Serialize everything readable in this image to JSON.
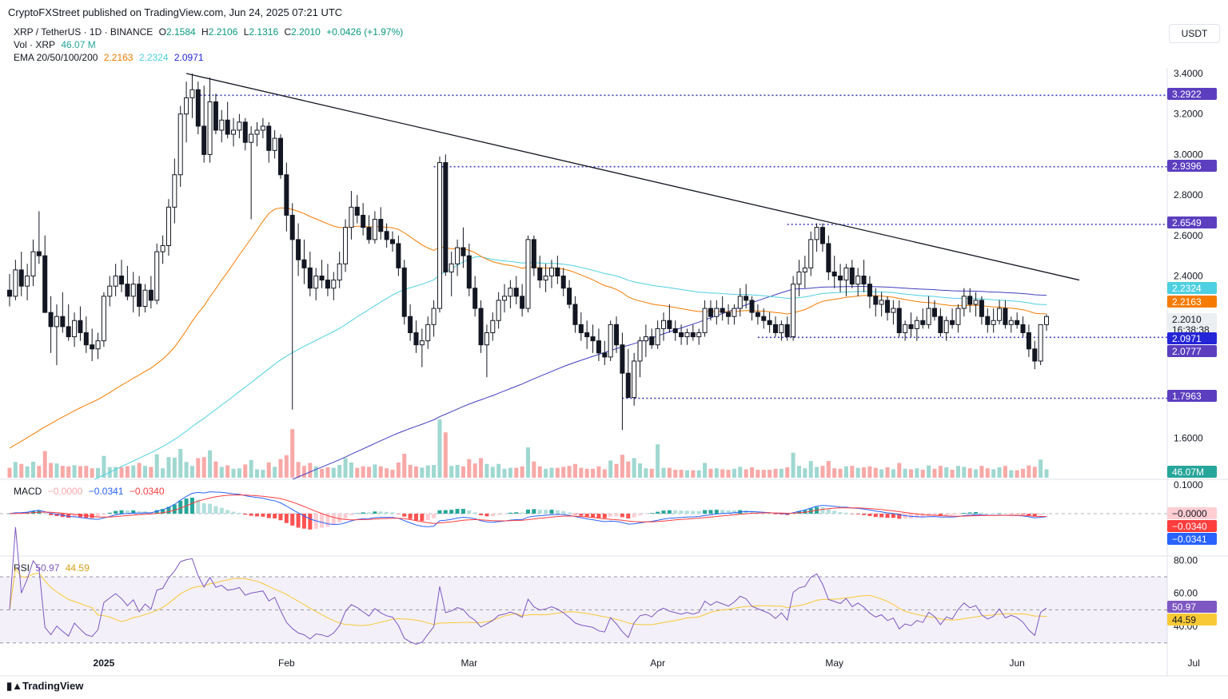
{
  "publisher_line": "CryptoFXStreet published on TradingView.com, Jun 24, 2025 07:21 UTC",
  "currency_button": "USDT",
  "brand": "TradingView",
  "header": {
    "symbol": "XRP / TetherUS · 1D · BINANCE",
    "ohlc": [
      {
        "label": "O",
        "value": "2.1584"
      },
      {
        "label": "H",
        "value": "2.2106"
      },
      {
        "label": "L",
        "value": "2.1316"
      },
      {
        "label": "C",
        "value": "2.2010"
      }
    ],
    "change": "+0.0426 (+1.97%)",
    "vol_label": "Vol · XRP",
    "vol_value": "46.07 M",
    "ema_label": "EMA 20/50/100/200",
    "ema_values": [
      "2.2163",
      "2.2324",
      "2.0971"
    ]
  },
  "macd_header": {
    "label": "MACD",
    "values": [
      "−0.0000",
      "−0.0341",
      "−0.0340"
    ]
  },
  "rsi_header": {
    "label": "RSI",
    "values": [
      "50.97",
      "44.59"
    ]
  },
  "colors": {
    "up": "#26a69a",
    "down": "#ef5350",
    "ema20": "#f57c00",
    "ema50": "#ff9800",
    "ema100": "#4dd0e1",
    "ema200": "#3f3fbf",
    "level": "#3f3fbf",
    "rsi": "#7e57c2",
    "rsi_ma": "#f9c935",
    "macd": "#2962ff",
    "signal": "#ff3d3d"
  },
  "chart_data": {
    "type": "candlestick",
    "title": "XRP / TetherUS · 1D · BINANCE",
    "ylim": [
      1.45,
      3.45
    ],
    "y_ticks": [
      "3.4000",
      "3.2000",
      "3.0000",
      "2.8000",
      "2.6000",
      "2.4000",
      "1.6000"
    ],
    "x_ticks": [
      "2025",
      "Feb",
      "Mar",
      "Apr",
      "May",
      "Jun",
      "Jul"
    ],
    "horizontal_levels": [
      "3.2922",
      "2.9396",
      "2.6549",
      "2.0971",
      "1.7963"
    ],
    "price_tags": [
      {
        "value": "3.2922",
        "bg": "#5b3fbf",
        "fg": "#ffffff"
      },
      {
        "value": "2.9396",
        "bg": "#5b3fbf",
        "fg": "#ffffff"
      },
      {
        "value": "2.6549",
        "bg": "#5b3fbf",
        "fg": "#ffffff"
      },
      {
        "value": "2.2324",
        "bg": "#4dd0e1",
        "fg": "#ffffff"
      },
      {
        "value": "2.2163",
        "bg": "#f57c00",
        "fg": "#ffffff"
      },
      {
        "value": "2.2010",
        "bg": "#eceff2",
        "fg": "#131722",
        "sub": "16:38:38"
      },
      {
        "value": "2.0971",
        "bg": "#2525d8",
        "fg": "#ffffff"
      },
      {
        "value": "2.0777",
        "bg": "#5b3fbf",
        "fg": "#ffffff"
      },
      {
        "value": "1.7963",
        "bg": "#5b3fbf",
        "fg": "#ffffff"
      }
    ],
    "trendline": [
      3.4,
      2.38
    ],
    "ohlc_series": [
      [
        2.33,
        2.41,
        2.25,
        2.3
      ],
      [
        2.3,
        2.48,
        2.28,
        2.43
      ],
      [
        2.43,
        2.52,
        2.3,
        2.35
      ],
      [
        2.35,
        2.46,
        2.28,
        2.4
      ],
      [
        2.4,
        2.58,
        2.35,
        2.52
      ],
      [
        2.52,
        2.72,
        2.46,
        2.5
      ],
      [
        2.5,
        2.6,
        2.25,
        2.22
      ],
      [
        2.22,
        2.3,
        2.02,
        2.15
      ],
      [
        2.15,
        2.26,
        1.96,
        2.2
      ],
      [
        2.2,
        2.32,
        2.12,
        2.15
      ],
      [
        2.15,
        2.26,
        2.08,
        2.1
      ],
      [
        2.1,
        2.22,
        2.05,
        2.18
      ],
      [
        2.18,
        2.25,
        2.08,
        2.12
      ],
      [
        2.12,
        2.2,
        2.02,
        2.06
      ],
      [
        2.06,
        2.14,
        1.98,
        2.04
      ],
      [
        2.04,
        2.12,
        1.99,
        2.08
      ],
      [
        2.08,
        2.32,
        2.05,
        2.3
      ],
      [
        2.3,
        2.4,
        2.25,
        2.35
      ],
      [
        2.35,
        2.46,
        2.3,
        2.4
      ],
      [
        2.4,
        2.48,
        2.32,
        2.36
      ],
      [
        2.36,
        2.45,
        2.28,
        2.3
      ],
      [
        2.3,
        2.42,
        2.22,
        2.36
      ],
      [
        2.36,
        2.4,
        2.2,
        2.25
      ],
      [
        2.25,
        2.36,
        2.22,
        2.33
      ],
      [
        2.33,
        2.4,
        2.24,
        2.28
      ],
      [
        2.28,
        2.56,
        2.26,
        2.52
      ],
      [
        2.52,
        2.6,
        2.46,
        2.55
      ],
      [
        2.55,
        2.78,
        2.5,
        2.74
      ],
      [
        2.74,
        2.98,
        2.66,
        2.9
      ],
      [
        2.9,
        3.24,
        2.84,
        3.2
      ],
      [
        3.2,
        3.36,
        3.06,
        3.28
      ],
      [
        3.28,
        3.4,
        3.18,
        3.32
      ],
      [
        3.32,
        3.36,
        3.1,
        3.14
      ],
      [
        3.14,
        3.34,
        2.96,
        3.0
      ],
      [
        3.0,
        3.38,
        2.96,
        3.26
      ],
      [
        3.26,
        3.3,
        3.1,
        3.12
      ],
      [
        3.12,
        3.22,
        3.06,
        3.17
      ],
      [
        3.17,
        3.26,
        3.08,
        3.1
      ],
      [
        3.1,
        3.18,
        3.04,
        3.12
      ],
      [
        3.12,
        3.2,
        3.08,
        3.16
      ],
      [
        3.16,
        3.18,
        3.02,
        3.06
      ],
      [
        3.06,
        3.14,
        2.68,
        3.1
      ],
      [
        3.1,
        3.16,
        3.04,
        3.12
      ],
      [
        3.12,
        3.18,
        3.08,
        3.14
      ],
      [
        3.14,
        3.16,
        2.96,
        3.02
      ],
      [
        3.02,
        3.12,
        2.98,
        3.08
      ],
      [
        3.08,
        3.1,
        2.88,
        2.9
      ],
      [
        2.9,
        2.96,
        2.62,
        2.7
      ],
      [
        2.7,
        2.76,
        1.74,
        2.58
      ],
      [
        2.58,
        2.66,
        2.4,
        2.48
      ],
      [
        2.48,
        2.58,
        2.36,
        2.44
      ],
      [
        2.44,
        2.52,
        2.3,
        2.34
      ],
      [
        2.34,
        2.44,
        2.28,
        2.4
      ],
      [
        2.4,
        2.48,
        2.34,
        2.38
      ],
      [
        2.38,
        2.46,
        2.3,
        2.34
      ],
      [
        2.34,
        2.42,
        2.28,
        2.38
      ],
      [
        2.38,
        2.52,
        2.34,
        2.46
      ],
      [
        2.46,
        2.68,
        2.42,
        2.64
      ],
      [
        2.64,
        2.82,
        2.58,
        2.74
      ],
      [
        2.74,
        2.8,
        2.66,
        2.7
      ],
      [
        2.7,
        2.76,
        2.6,
        2.64
      ],
      [
        2.64,
        2.7,
        2.56,
        2.58
      ],
      [
        2.58,
        2.72,
        2.56,
        2.68
      ],
      [
        2.68,
        2.74,
        2.58,
        2.62
      ],
      [
        2.62,
        2.66,
        2.54,
        2.58
      ],
      [
        2.58,
        2.62,
        2.52,
        2.56
      ],
      [
        2.56,
        2.6,
        2.4,
        2.44
      ],
      [
        2.44,
        2.48,
        2.16,
        2.2
      ],
      [
        2.2,
        2.26,
        2.08,
        2.12
      ],
      [
        2.12,
        2.18,
        2.02,
        2.06
      ],
      [
        2.06,
        2.14,
        1.95,
        2.08
      ],
      [
        2.08,
        2.2,
        2.04,
        2.16
      ],
      [
        2.16,
        2.28,
        2.1,
        2.24
      ],
      [
        2.24,
        2.99,
        2.22,
        2.96
      ],
      [
        2.96,
        3.0,
        2.4,
        2.42
      ],
      [
        2.42,
        2.52,
        2.3,
        2.46
      ],
      [
        2.46,
        2.58,
        2.4,
        2.54
      ],
      [
        2.54,
        2.64,
        2.44,
        2.5
      ],
      [
        2.5,
        2.56,
        2.3,
        2.34
      ],
      [
        2.34,
        2.4,
        2.2,
        2.24
      ],
      [
        2.24,
        2.28,
        2.02,
        2.06
      ],
      [
        2.06,
        2.16,
        1.9,
        2.12
      ],
      [
        2.12,
        2.22,
        2.08,
        2.18
      ],
      [
        2.18,
        2.32,
        2.14,
        2.28
      ],
      [
        2.28,
        2.36,
        2.22,
        2.3
      ],
      [
        2.3,
        2.38,
        2.24,
        2.34
      ],
      [
        2.34,
        2.4,
        2.26,
        2.3
      ],
      [
        2.3,
        2.36,
        2.2,
        2.24
      ],
      [
        2.24,
        2.6,
        2.22,
        2.58
      ],
      [
        2.58,
        2.6,
        2.4,
        2.44
      ],
      [
        2.44,
        2.5,
        2.34,
        2.38
      ],
      [
        2.38,
        2.46,
        2.32,
        2.4
      ],
      [
        2.4,
        2.48,
        2.34,
        2.44
      ],
      [
        2.44,
        2.5,
        2.36,
        2.4
      ],
      [
        2.4,
        2.44,
        2.3,
        2.34
      ],
      [
        2.34,
        2.38,
        2.24,
        2.26
      ],
      [
        2.26,
        2.3,
        2.12,
        2.16
      ],
      [
        2.16,
        2.22,
        2.08,
        2.12
      ],
      [
        2.12,
        2.18,
        2.04,
        2.1
      ],
      [
        2.1,
        2.16,
        2.02,
        2.08
      ],
      [
        2.08,
        2.14,
        1.98,
        2.02
      ],
      [
        2.02,
        2.08,
        1.96,
        2.0
      ],
      [
        2.0,
        2.18,
        1.98,
        2.16
      ],
      [
        2.16,
        2.2,
        2.02,
        2.06
      ],
      [
        2.06,
        2.12,
        1.64,
        1.92
      ],
      [
        1.92,
        2.04,
        1.8,
        1.8
      ],
      [
        1.8,
        2.02,
        1.76,
        1.98
      ],
      [
        1.98,
        2.1,
        1.9,
        2.08
      ],
      [
        2.08,
        2.16,
        2.0,
        2.1
      ],
      [
        2.1,
        2.14,
        2.04,
        2.06
      ],
      [
        2.06,
        2.18,
        2.04,
        2.14
      ],
      [
        2.14,
        2.22,
        2.08,
        2.18
      ],
      [
        2.18,
        2.26,
        2.12,
        2.14
      ],
      [
        2.14,
        2.18,
        2.08,
        2.12
      ],
      [
        2.12,
        2.16,
        2.06,
        2.1
      ],
      [
        2.1,
        2.14,
        2.06,
        2.12
      ],
      [
        2.12,
        2.16,
        2.08,
        2.1
      ],
      [
        2.1,
        2.14,
        2.06,
        2.12
      ],
      [
        2.12,
        2.28,
        2.1,
        2.24
      ],
      [
        2.24,
        2.28,
        2.18,
        2.2
      ],
      [
        2.2,
        2.28,
        2.16,
        2.24
      ],
      [
        2.24,
        2.3,
        2.18,
        2.22
      ],
      [
        2.22,
        2.26,
        2.16,
        2.2
      ],
      [
        2.2,
        2.26,
        2.16,
        2.24
      ],
      [
        2.24,
        2.34,
        2.2,
        2.3
      ],
      [
        2.3,
        2.36,
        2.24,
        2.28
      ],
      [
        2.28,
        2.3,
        2.18,
        2.22
      ],
      [
        2.22,
        2.26,
        2.16,
        2.2
      ],
      [
        2.2,
        2.24,
        2.14,
        2.18
      ],
      [
        2.18,
        2.22,
        2.12,
        2.16
      ],
      [
        2.16,
        2.2,
        2.1,
        2.12
      ],
      [
        2.12,
        2.18,
        2.08,
        2.16
      ],
      [
        2.16,
        2.2,
        2.08,
        2.1
      ],
      [
        2.1,
        2.4,
        2.08,
        2.36
      ],
      [
        2.36,
        2.48,
        2.3,
        2.42
      ],
      [
        2.42,
        2.5,
        2.34,
        2.44
      ],
      [
        2.44,
        2.62,
        2.4,
        2.58
      ],
      [
        2.58,
        2.66,
        2.52,
        2.64
      ],
      [
        2.64,
        2.66,
        2.52,
        2.56
      ],
      [
        2.56,
        2.6,
        2.38,
        2.42
      ],
      [
        2.42,
        2.5,
        2.34,
        2.4
      ],
      [
        2.4,
        2.46,
        2.32,
        2.38
      ],
      [
        2.38,
        2.46,
        2.3,
        2.44
      ],
      [
        2.44,
        2.48,
        2.34,
        2.36
      ],
      [
        2.36,
        2.44,
        2.3,
        2.4
      ],
      [
        2.4,
        2.48,
        2.32,
        2.36
      ],
      [
        2.36,
        2.4,
        2.24,
        2.3
      ],
      [
        2.3,
        2.34,
        2.2,
        2.26
      ],
      [
        2.26,
        2.32,
        2.2,
        2.28
      ],
      [
        2.28,
        2.3,
        2.18,
        2.22
      ],
      [
        2.22,
        2.28,
        2.16,
        2.24
      ],
      [
        2.24,
        2.28,
        2.1,
        2.12
      ],
      [
        2.12,
        2.18,
        2.08,
        2.16
      ],
      [
        2.16,
        2.22,
        2.1,
        2.14
      ],
      [
        2.14,
        2.2,
        2.08,
        2.18
      ],
      [
        2.18,
        2.24,
        2.14,
        2.16
      ],
      [
        2.16,
        2.3,
        2.14,
        2.24
      ],
      [
        2.24,
        2.28,
        2.18,
        2.2
      ],
      [
        2.2,
        2.24,
        2.1,
        2.12
      ],
      [
        2.12,
        2.2,
        2.08,
        2.18
      ],
      [
        2.18,
        2.24,
        2.14,
        2.16
      ],
      [
        2.16,
        2.26,
        2.12,
        2.24
      ],
      [
        2.24,
        2.34,
        2.2,
        2.3
      ],
      [
        2.3,
        2.34,
        2.22,
        2.26
      ],
      [
        2.26,
        2.32,
        2.2,
        2.28
      ],
      [
        2.28,
        2.3,
        2.16,
        2.2
      ],
      [
        2.2,
        2.24,
        2.12,
        2.16
      ],
      [
        2.16,
        2.24,
        2.12,
        2.18
      ],
      [
        2.18,
        2.28,
        2.16,
        2.24
      ],
      [
        2.24,
        2.28,
        2.14,
        2.16
      ],
      [
        2.16,
        2.2,
        2.12,
        2.18
      ],
      [
        2.18,
        2.22,
        2.14,
        2.16
      ],
      [
        2.16,
        2.2,
        2.1,
        2.12
      ],
      [
        2.12,
        2.16,
        2.0,
        2.04
      ],
      [
        2.04,
        2.08,
        1.94,
        1.98
      ],
      [
        1.98,
        2.16,
        1.96,
        2.16
      ],
      [
        2.16,
        2.21,
        2.13,
        2.2
      ]
    ]
  }
}
